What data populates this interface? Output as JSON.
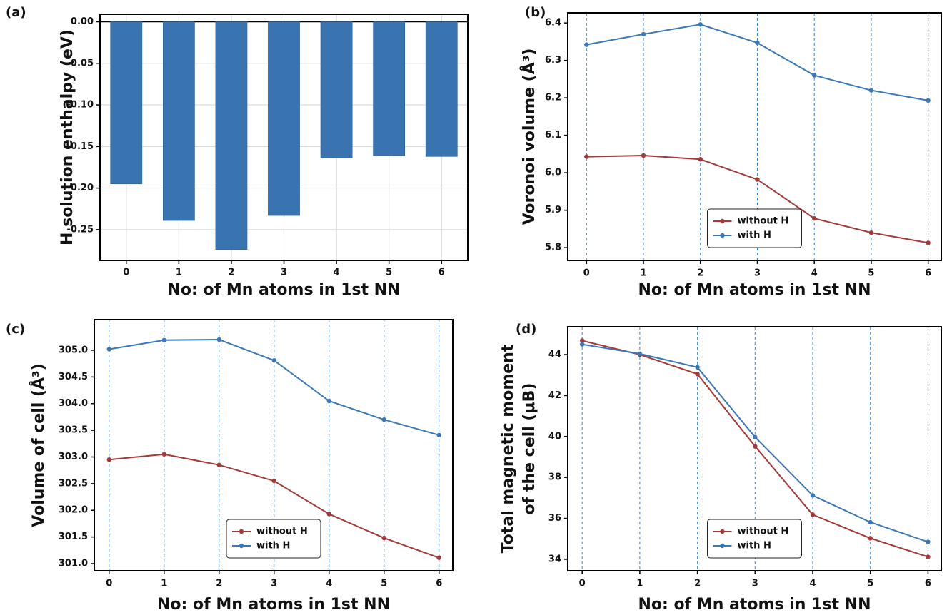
{
  "chart_data": [
    {
      "type": "bar",
      "panel_label": "(a)",
      "ylabel": [
        "H solution enthalpy (eV)"
      ],
      "xlabel": "No: of Mn atoms in 1st NN",
      "categories": [
        "0",
        "1",
        "2",
        "3",
        "4",
        "5",
        "6"
      ],
      "values": [
        -0.195,
        -0.239,
        -0.274,
        -0.233,
        -0.164,
        -0.161,
        -0.162
      ],
      "color": "#3a74b0",
      "ylim": [
        -0.287,
        0.009
      ],
      "yticks": [
        {
          "value": 0,
          "label": "0.00"
        },
        -0.05,
        {
          "value": -0.1,
          "label": "-0.10"
        },
        -0.15,
        {
          "value": -0.2,
          "label": "-0.20"
        },
        -0.25
      ],
      "grid": true
    },
    {
      "type": "line",
      "panel_label": "(b)",
      "ylabel": [
        "Voronoi volume (Å³)"
      ],
      "xlabel": "No: of Mn atoms in 1st NN",
      "x": [
        0,
        1,
        2,
        3,
        4,
        5,
        6
      ],
      "series": [
        {
          "name": "without H",
          "color": "#a23a3a",
          "values": [
            6.043,
            6.046,
            6.036,
            5.982,
            5.878,
            5.84,
            5.813
          ]
        },
        {
          "name": "with H",
          "color": "#3b78b5",
          "values": [
            6.342,
            6.37,
            6.396,
            6.347,
            6.26,
            6.22,
            6.193
          ]
        }
      ],
      "xlim": [
        -0.33,
        6.23
      ],
      "xticks": [
        0,
        1,
        2,
        3,
        4,
        5,
        6
      ],
      "ylim": [
        5.766,
        6.427
      ],
      "yticks": [
        5.8,
        5.9,
        {
          "value": 6,
          "label": "6.0"
        },
        6.1,
        6.2,
        6.3,
        6.4
      ],
      "grid": "x",
      "legend": "lower center"
    },
    {
      "type": "line",
      "panel_label": "(c)",
      "ylabel": [
        "Volume of cell (Å³)"
      ],
      "xlabel": "No: of Mn atoms in 1st NN",
      "x": [
        0,
        1,
        2,
        3,
        4,
        5,
        6
      ],
      "series": [
        {
          "name": "without H",
          "color": "#a23a3a",
          "values": [
            302.95,
            303.05,
            302.85,
            302.55,
            301.93,
            301.48,
            301.11
          ]
        },
        {
          "name": "with H",
          "color": "#3b78b5",
          "values": [
            305.02,
            305.19,
            305.2,
            304.81,
            304.05,
            303.7,
            303.41
          ]
        }
      ],
      "xlim": [
        -0.27,
        6.25
      ],
      "xticks": [
        0,
        1,
        2,
        3,
        4,
        5,
        6
      ],
      "ylim": [
        300.866,
        305.575
      ],
      "yticks": [
        {
          "value": 301,
          "label": "301.0"
        },
        301.5,
        {
          "value": 302,
          "label": "302.0"
        },
        302.5,
        {
          "value": 303,
          "label": "303.0"
        },
        303.5,
        {
          "value": 304,
          "label": "304.0"
        },
        304.5,
        {
          "value": 305,
          "label": "305.0"
        }
      ],
      "grid": "x",
      "legend": "lower center"
    },
    {
      "type": "line",
      "panel_label": "(d)",
      "ylabel": [
        "Total magnetic moment",
        "of the cell (μB)"
      ],
      "xlabel": "No: of Mn atoms in 1st NN",
      "x": [
        0,
        1,
        2,
        3,
        4,
        5,
        6
      ],
      "series": [
        {
          "name": "without H",
          "color": "#a23a3a",
          "values": [
            44.68,
            44.0,
            43.05,
            39.52,
            36.18,
            35.03,
            34.12
          ]
        },
        {
          "name": "with H",
          "color": "#3b78b5",
          "values": [
            44.5,
            44.04,
            43.38,
            39.97,
            37.12,
            35.81,
            34.85
          ]
        }
      ],
      "xlim": [
        -0.25,
        6.23
      ],
      "xticks": [
        0,
        1,
        2,
        3,
        4,
        5,
        6
      ],
      "ylim": [
        33.44,
        45.36
      ],
      "yticks": [
        34,
        36,
        38,
        40,
        42,
        44
      ],
      "grid": "x",
      "legend": "lower center"
    }
  ]
}
